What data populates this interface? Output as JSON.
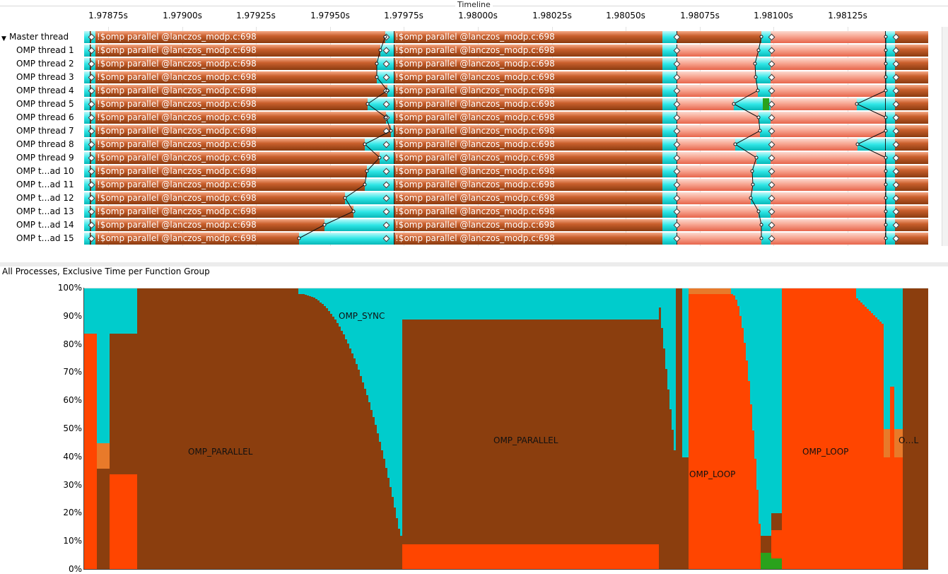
{
  "window": {
    "title": "Timeline"
  },
  "timeline": {
    "ticks": [
      "1.97875s",
      "1.97900s",
      "1.97925s",
      "1.97950s",
      "1.97975s",
      "1.98000s",
      "1.98025s",
      "1.98050s",
      "1.98075s",
      "1.98100s",
      "1.98125s"
    ],
    "region_label": "!$omp parallel @lanczos_modp.c:698",
    "threads": [
      "Master thread",
      "OMP thread 1",
      "OMP thread 2",
      "OMP thread 3",
      "OMP thread 4",
      "OMP thread 5",
      "OMP thread 6",
      "OMP thread 7",
      "OMP thread 8",
      "OMP thread 9",
      "OMP t…ad 10",
      "OMP t…ad 11",
      "OMP t…ad 12",
      "OMP t…ad 13",
      "OMP t…ad 14",
      "OMP t…ad 15"
    ]
  },
  "chart_panel": {
    "title": "All Processes, Exclusive Time per Function Group"
  },
  "colors": {
    "omp_parallel": "#8b3e0e",
    "omp_sync": "#00cccc",
    "omp_loop": "#ff4500",
    "other": "#e87a2a",
    "green": "#2aa21c"
  },
  "chart_data": {
    "type": "area",
    "title": "All Processes, Exclusive Time per Function Group",
    "ylim": [
      0,
      100
    ],
    "yticks": [
      "100%",
      "90%",
      "80%",
      "70%",
      "60%",
      "50%",
      "40%",
      "30%",
      "20%",
      "10%",
      "0%"
    ],
    "x_range_seconds": [
      1.97862,
      1.9815
    ],
    "series_labels": [
      "OMP_PARALLEL",
      "OMP_SYNC",
      "OMP_PARALLEL",
      "OMP_LOOP",
      "OMP_LOOP",
      "O…L"
    ],
    "approx_profile": [
      {
        "t": 1.97862,
        "omp_loop": 84,
        "omp_sync": 16,
        "omp_parallel": 0
      },
      {
        "t": 1.97866,
        "omp_loop": 0,
        "omp_sync": 55,
        "omp_parallel": 36,
        "other": 9
      },
      {
        "t": 1.9787,
        "omp_loop": 34,
        "omp_sync": 16,
        "omp_parallel": 50
      },
      {
        "t": 1.9788,
        "omp_parallel": 100
      },
      {
        "t": 1.97935,
        "omp_parallel": 100
      },
      {
        "t": 1.97945,
        "omp_parallel": 88,
        "omp_sync": 12
      },
      {
        "t": 1.9796,
        "omp_parallel": 70,
        "omp_sync": 30
      },
      {
        "t": 1.97968,
        "omp_parallel": 12,
        "omp_sync": 88
      },
      {
        "t": 1.9797,
        "omp_parallel": 80,
        "omp_sync": 11,
        "omp_loop": 9
      },
      {
        "t": 1.9806,
        "omp_parallel": 100
      },
      {
        "t": 1.98066,
        "omp_parallel": 40,
        "omp_sync": 60
      },
      {
        "t": 1.98068,
        "omp_loop": 98,
        "other": 2
      },
      {
        "t": 1.9809,
        "omp_loop": 88,
        "omp_sync": 12
      },
      {
        "t": 1.98096,
        "omp_loop": 10,
        "omp_sync": 80,
        "green": 4,
        "omp_parallel": 6
      },
      {
        "t": 1.981,
        "omp_loop": 100
      },
      {
        "t": 1.98128,
        "omp_loop": 87,
        "omp_sync": 13
      },
      {
        "t": 1.98138,
        "omp_loop": 40,
        "omp_sync": 50,
        "other": 10
      },
      {
        "t": 1.98141,
        "omp_parallel": 100
      }
    ]
  }
}
